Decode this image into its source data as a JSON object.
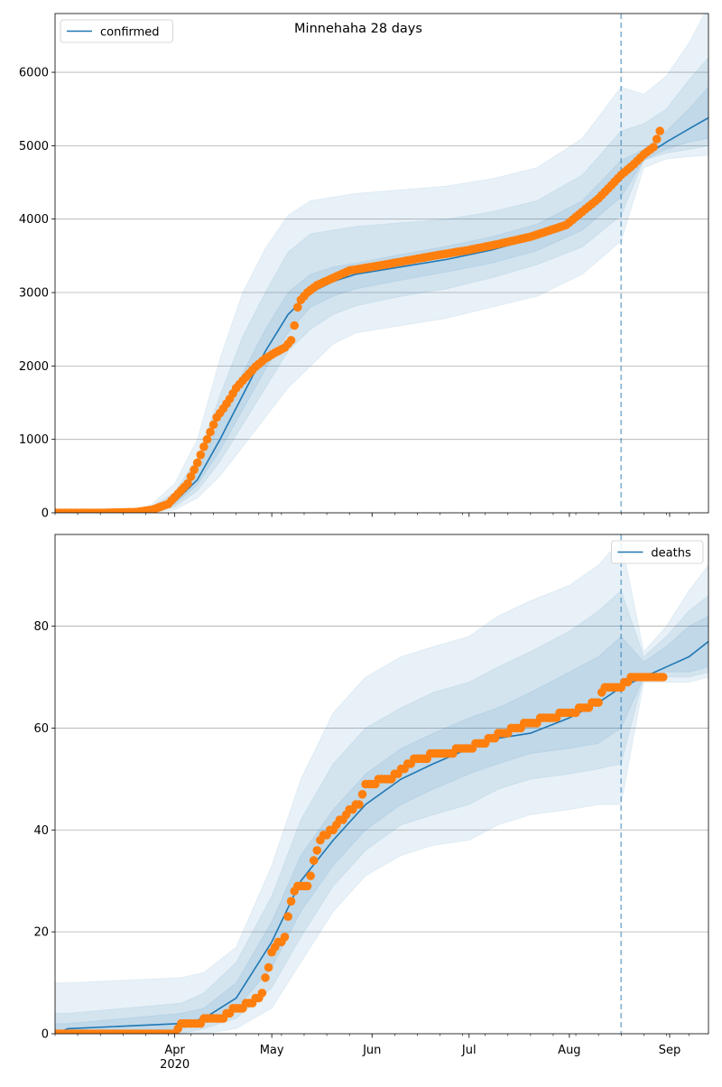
{
  "figure_title": "Minnehaha 28 days",
  "chart_data": [
    {
      "type": "line",
      "title": "Minnehaha 28 days",
      "legend": {
        "label": "confirmed",
        "placement": "top-left"
      },
      "ylim": [
        0,
        6800
      ],
      "yticks": [
        0,
        1000,
        2000,
        3000,
        4000,
        5000,
        6000
      ],
      "grid": "horizontal",
      "forecast_start": "2020-08-17",
      "colors": {
        "model": "#1f77b4",
        "observed": "#ff7f0e",
        "band": "#1f77b4"
      },
      "model": {
        "x": [
          "2020-02-24",
          "2020-03-10",
          "2020-03-20",
          "2020-03-25",
          "2020-04-01",
          "2020-04-08",
          "2020-04-15",
          "2020-04-22",
          "2020-04-29",
          "2020-05-06",
          "2020-05-13",
          "2020-05-20",
          "2020-05-27",
          "2020-06-10",
          "2020-06-24",
          "2020-07-08",
          "2020-07-22",
          "2020-08-05",
          "2020-08-17",
          "2020-08-24",
          "2020-08-31",
          "2020-09-07",
          "2020-09-13"
        ],
        "y": [
          0,
          0,
          0,
          40,
          150,
          450,
          1000,
          1600,
          2200,
          2700,
          3000,
          3150,
          3250,
          3350,
          3450,
          3580,
          3750,
          4050,
          4550,
          4850,
          5050,
          5230,
          5380
        ]
      },
      "bands": [
        {
          "lower": [
            0,
            0,
            0,
            0,
            40,
            200,
            500,
            900,
            1300,
            1700,
            2000,
            2300,
            2450,
            2550,
            2650,
            2800,
            2950,
            3250,
            3700,
            4700,
            4820,
            4850,
            4870
          ],
          "upper": [
            20,
            20,
            30,
            120,
            400,
            1000,
            2100,
            3000,
            3600,
            4050,
            4250,
            4300,
            4350,
            4400,
            4450,
            4550,
            4700,
            5100,
            5800,
            5700,
            5950,
            6400,
            6900
          ]
        },
        {
          "lower": [
            0,
            0,
            0,
            10,
            80,
            300,
            700,
            1200,
            1700,
            2200,
            2500,
            2700,
            2820,
            2950,
            3050,
            3200,
            3380,
            3620,
            4050,
            4800,
            4900,
            4950,
            5000
          ],
          "upper": [
            10,
            10,
            20,
            90,
            280,
            750,
            1600,
            2400,
            3000,
            3550,
            3800,
            3850,
            3900,
            3950,
            4000,
            4100,
            4250,
            4600,
            5200,
            5300,
            5500,
            5900,
            6200
          ]
        },
        {
          "lower": [
            0,
            0,
            0,
            20,
            110,
            380,
            850,
            1400,
            1950,
            2450,
            2800,
            2950,
            3050,
            3170,
            3280,
            3400,
            3570,
            3850,
            4300,
            4800,
            4950,
            5050,
            5100
          ],
          "upper": [
            5,
            5,
            10,
            70,
            200,
            580,
            1250,
            1900,
            2500,
            3000,
            3250,
            3350,
            3400,
            3520,
            3630,
            3760,
            3930,
            4250,
            4800,
            4950,
            5200,
            5500,
            5800
          ]
        }
      ],
      "observed": {
        "x": [
          "2020-02-24",
          "2020-03-10",
          "2020-03-20",
          "2020-03-25",
          "2020-03-30",
          "2020-04-05",
          "2020-04-08",
          "2020-04-10",
          "2020-04-12",
          "2020-04-14",
          "2020-04-16",
          "2020-04-18",
          "2020-04-20",
          "2020-04-23",
          "2020-04-26",
          "2020-04-29",
          "2020-05-02",
          "2020-05-05",
          "2020-05-07",
          "2020-05-08",
          "2020-05-09",
          "2020-05-10",
          "2020-05-12",
          "2020-05-15",
          "2020-05-20",
          "2020-05-25",
          "2020-06-01",
          "2020-06-10",
          "2020-06-20",
          "2020-07-01",
          "2020-07-10",
          "2020-07-20",
          "2020-07-31",
          "2020-08-10",
          "2020-08-17",
          "2020-08-21",
          "2020-08-24",
          "2020-08-27",
          "2020-08-29"
        ],
        "y": [
          0,
          0,
          10,
          40,
          120,
          400,
          680,
          900,
          1100,
          1300,
          1420,
          1550,
          1700,
          1850,
          1990,
          2100,
          2180,
          2250,
          2350,
          2550,
          2800,
          2900,
          3000,
          3100,
          3200,
          3300,
          3350,
          3420,
          3500,
          3580,
          3660,
          3760,
          3920,
          4280,
          4600,
          4750,
          4880,
          4980,
          5200
        ]
      }
    },
    {
      "type": "line",
      "legend": {
        "label": "deaths",
        "placement": "top-right"
      },
      "ylim": [
        0,
        98
      ],
      "yticks": [
        0,
        20,
        40,
        60,
        80
      ],
      "grid": "horizontal",
      "forecast_start": "2020-08-17",
      "colors": {
        "model": "#1f77b4",
        "observed": "#ff7f0e",
        "band": "#1f77b4"
      },
      "model": {
        "x": [
          "2020-02-24",
          "2020-02-28",
          "2020-04-03",
          "2020-04-10",
          "2020-04-20",
          "2020-05-01",
          "2020-05-10",
          "2020-05-20",
          "2020-05-30",
          "2020-06-10",
          "2020-06-20",
          "2020-07-01",
          "2020-07-10",
          "2020-07-20",
          "2020-08-01",
          "2020-08-10",
          "2020-08-17",
          "2020-08-24",
          "2020-08-31",
          "2020-09-07",
          "2020-09-13"
        ],
        "y": [
          0,
          1,
          2,
          3,
          7,
          18,
          30,
          38,
          45,
          50,
          53,
          56,
          58,
          59,
          62,
          65,
          68,
          70,
          72,
          74,
          77
        ]
      },
      "bands": [
        {
          "lower": [
            0,
            0,
            0,
            0,
            1,
            5,
            14,
            24,
            31,
            35,
            37,
            38,
            41,
            43,
            44,
            45,
            45,
            69,
            69,
            69,
            70
          ],
          "upper": [
            10,
            10,
            11,
            12,
            17,
            33,
            50,
            63,
            70,
            74,
            76,
            78,
            82,
            85,
            88,
            92,
            97,
            75,
            80,
            87,
            92
          ]
        },
        {
          "lower": [
            0,
            0,
            0,
            1,
            3,
            9,
            19,
            29,
            36,
            41,
            43,
            45,
            48,
            50,
            51,
            52,
            53,
            70,
            70,
            70,
            71
          ],
          "upper": [
            4,
            4,
            6,
            8,
            14,
            27,
            42,
            53,
            60,
            64,
            67,
            69,
            72,
            75,
            79,
            83,
            87,
            74,
            78,
            83,
            86
          ]
        },
        {
          "lower": [
            0,
            0,
            1,
            2,
            5,
            13,
            24,
            33,
            40,
            45,
            48,
            51,
            53,
            55,
            56,
            57,
            60,
            70,
            71,
            71,
            72
          ],
          "upper": [
            2,
            2,
            4,
            5,
            10,
            22,
            35,
            44,
            51,
            56,
            59,
            62,
            64,
            67,
            71,
            74,
            78,
            73,
            76,
            80,
            82
          ]
        }
      ],
      "observed": {
        "x": [
          "2020-02-24",
          "2020-04-01",
          "2020-04-02",
          "2020-04-04",
          "2020-04-15",
          "2020-04-20",
          "2020-04-25",
          "2020-04-28",
          "2020-05-01",
          "2020-05-05",
          "2020-05-07",
          "2020-05-09",
          "2020-05-12",
          "2020-05-16",
          "2020-05-20",
          "2020-05-24",
          "2020-05-28",
          "2020-05-30",
          "2020-06-07",
          "2020-06-15",
          "2020-07-01",
          "2020-07-15",
          "2020-07-25",
          "2020-08-01",
          "2020-08-10",
          "2020-08-12",
          "2020-08-17",
          "2020-08-20",
          "2020-08-25",
          "2020-08-30"
        ],
        "y": [
          0,
          0,
          1,
          2,
          3,
          5,
          6,
          8,
          16,
          19,
          26,
          29,
          29,
          38,
          40,
          43,
          45,
          49,
          50,
          54,
          56,
          60,
          62,
          63,
          65,
          68,
          68,
          70,
          70,
          70
        ]
      }
    }
  ],
  "x_axis": {
    "start": "2020-02-24",
    "end": "2020-09-13",
    "labels": [
      {
        "date": "2020-04-01",
        "label": "Apr",
        "sub": "2020"
      },
      {
        "date": "2020-05-01",
        "label": "May",
        "sub": ""
      },
      {
        "date": "2020-06-01",
        "label": "Jun",
        "sub": ""
      },
      {
        "date": "2020-07-01",
        "label": "Jul",
        "sub": ""
      },
      {
        "date": "2020-08-01",
        "label": "Aug",
        "sub": ""
      },
      {
        "date": "2020-09-01",
        "label": "Sep",
        "sub": ""
      }
    ],
    "minor_tick_interval": "weekly"
  }
}
